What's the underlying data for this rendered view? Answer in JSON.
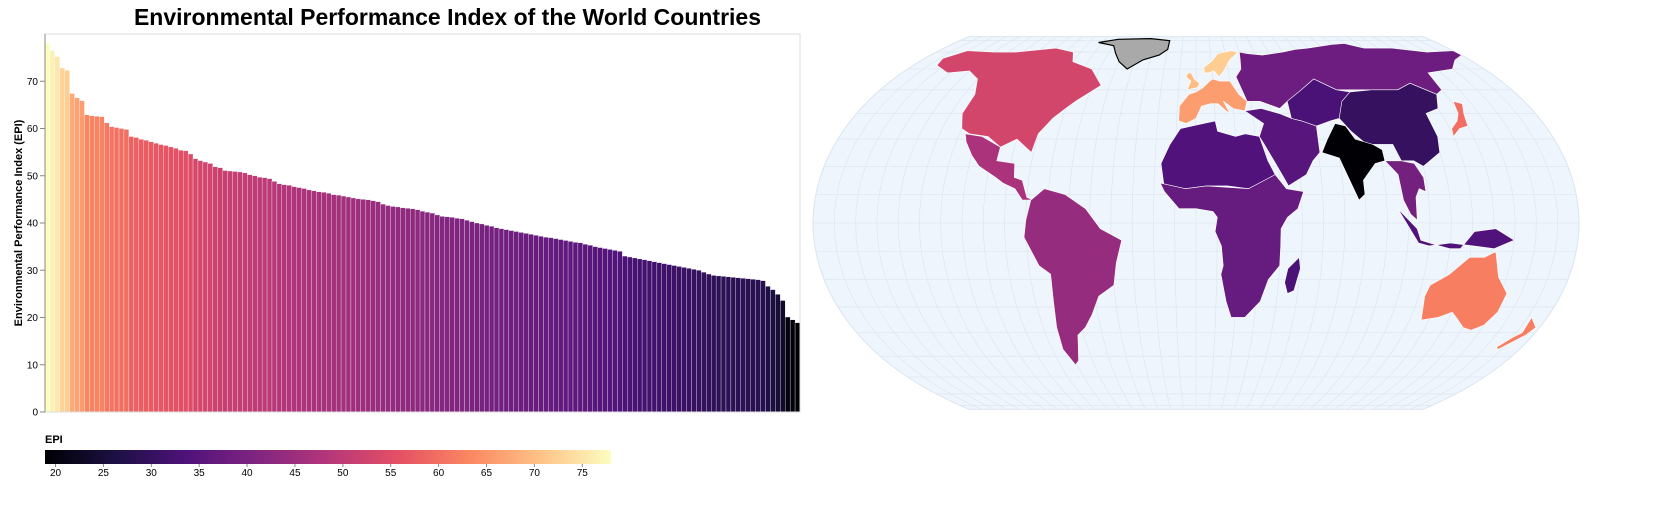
{
  "chart_data": [
    {
      "type": "bar",
      "title": "Environmental Performance Index of the World Countries",
      "xlabel": "",
      "ylabel": "Environmental Performance Index (EPI)",
      "ylim": [
        0,
        80
      ],
      "yticks": [
        0,
        10,
        20,
        30,
        40,
        50,
        60,
        70
      ],
      "grid": false,
      "color_scale": "magma",
      "values": [
        78.0,
        76.5,
        75.2,
        72.8,
        72.3,
        67.4,
        66.5,
        65.9,
        62.9,
        62.7,
        62.6,
        62.5,
        61.2,
        60.4,
        60.2,
        60.0,
        59.8,
        58.3,
        58.1,
        57.7,
        57.5,
        57.2,
        56.9,
        56.6,
        56.4,
        56.1,
        55.8,
        55.4,
        55.3,
        54.6,
        53.6,
        53.2,
        52.9,
        52.6,
        51.9,
        51.7,
        51.1,
        51.0,
        50.9,
        50.8,
        50.6,
        50.2,
        50.0,
        49.7,
        49.6,
        49.4,
        48.8,
        48.3,
        48.1,
        48.0,
        47.7,
        47.5,
        47.3,
        47.0,
        46.8,
        46.6,
        46.5,
        46.3,
        46.0,
        45.9,
        45.7,
        45.5,
        45.3,
        45.1,
        45.0,
        44.9,
        44.7,
        44.5,
        44.0,
        43.7,
        43.5,
        43.4,
        43.2,
        43.1,
        43.0,
        42.8,
        42.5,
        42.3,
        42.1,
        41.7,
        41.4,
        41.3,
        41.2,
        41.0,
        40.9,
        40.6,
        40.3,
        40.0,
        39.8,
        39.5,
        39.3,
        39.0,
        38.8,
        38.6,
        38.4,
        38.2,
        38.0,
        37.8,
        37.6,
        37.4,
        37.2,
        37.0,
        36.9,
        36.7,
        36.5,
        36.3,
        36.1,
        35.9,
        35.8,
        35.5,
        35.3,
        35.0,
        34.8,
        34.6,
        34.4,
        34.2,
        34.0,
        33.0,
        32.8,
        32.6,
        32.4,
        32.2,
        32.0,
        31.8,
        31.6,
        31.4,
        31.2,
        31.0,
        30.8,
        30.6,
        30.4,
        30.2,
        30.0,
        29.6,
        29.2,
        28.9,
        28.8,
        28.7,
        28.6,
        28.5,
        28.4,
        28.3,
        28.2,
        28.1,
        28.0,
        27.8,
        26.6,
        25.9,
        24.9,
        23.6,
        20.1,
        19.5,
        18.9
      ]
    },
    {
      "type": "heatmap",
      "subtype": "choropleth-map",
      "projection": "equal-earth",
      "color_scale": "magma",
      "missing_color": "#a9a9a9",
      "ocean_color": "#eef5fc"
    }
  ],
  "legend": {
    "title": "EPI",
    "min": 18.9,
    "max": 78.0,
    "ticks": [
      "20",
      "25",
      "30",
      "35",
      "40",
      "45",
      "50",
      "55",
      "60",
      "65",
      "70",
      "75"
    ]
  }
}
